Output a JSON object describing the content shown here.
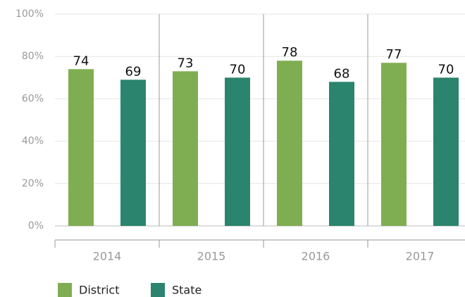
{
  "chart_data": {
    "type": "bar",
    "categories": [
      "2014",
      "2015",
      "2016",
      "2017"
    ],
    "series": [
      {
        "name": "District",
        "color": "#7fae52",
        "values": [
          74,
          73,
          78,
          77
        ]
      },
      {
        "name": "State",
        "color": "#2b846d",
        "values": [
          69,
          70,
          68,
          70
        ]
      }
    ],
    "ylim": [
      0,
      100
    ],
    "yticks": [
      {
        "value": 0,
        "label": "0%"
      },
      {
        "value": 20,
        "label": "20%"
      },
      {
        "value": 40,
        "label": "40%"
      },
      {
        "value": 60,
        "label": "60%"
      },
      {
        "value": 80,
        "label": "80%"
      },
      {
        "value": 100,
        "label": "100%"
      }
    ],
    "grid": true,
    "legend": "bottom-left"
  }
}
